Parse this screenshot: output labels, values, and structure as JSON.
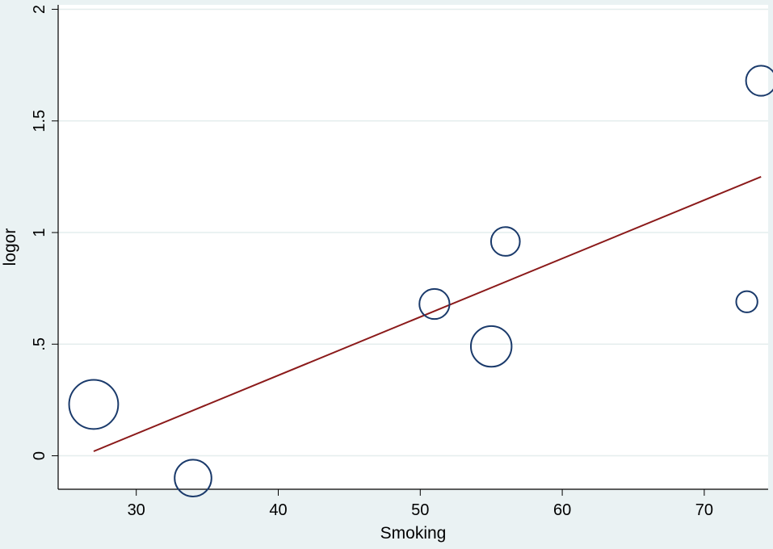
{
  "chart_data": {
    "type": "scatter",
    "xlabel": "Smoking",
    "ylabel": "logor",
    "xlim": [
      24.5,
      74.5
    ],
    "ylim": [
      -0.15,
      2.02
    ],
    "x_ticks": [
      30,
      40,
      50,
      60,
      70
    ],
    "x_tick_labels": [
      "30",
      "40",
      "50",
      "60",
      "70"
    ],
    "y_ticks": [
      0,
      0.5,
      1,
      1.5,
      2
    ],
    "y_tick_labels": [
      "0",
      ".5",
      "1",
      "1.5",
      "2"
    ],
    "grid": true,
    "points": [
      {
        "x": 27,
        "y": 0.23,
        "weight": 3.2
      },
      {
        "x": 34,
        "y": -0.1,
        "weight": 1.8
      },
      {
        "x": 51,
        "y": 0.68,
        "weight": 1.2
      },
      {
        "x": 55,
        "y": 0.49,
        "weight": 2.2
      },
      {
        "x": 56,
        "y": 0.96,
        "weight": 1.1
      },
      {
        "x": 73,
        "y": 0.69,
        "weight": 0.6
      },
      {
        "x": 74,
        "y": 1.68,
        "weight": 1.2
      }
    ],
    "fit_line": {
      "x": [
        27,
        74
      ],
      "y": [
        0.02,
        1.25
      ]
    },
    "colors": {
      "background": "#eaf2f3",
      "plot_area": "#ffffff",
      "grid": "#e4eded",
      "marker": "#1a3a6b",
      "fit_line": "#8b1a1a"
    }
  }
}
